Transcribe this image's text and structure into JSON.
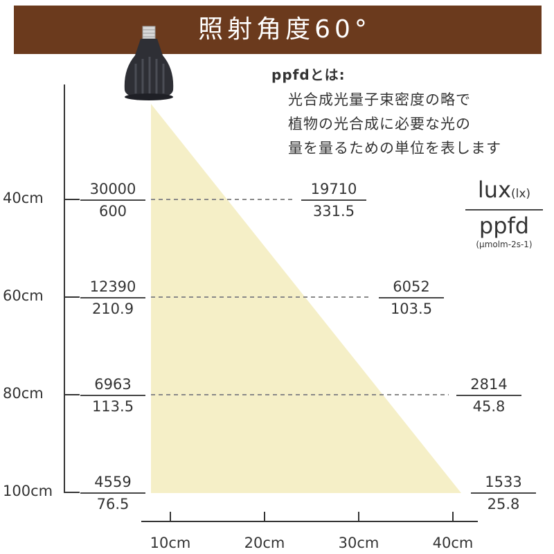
{
  "title": "照射角度60°",
  "note": {
    "heading": "ppfdとは:",
    "lines": [
      "光合成光量子束密度の略で",
      "植物の光合成に必要な光の",
      "量を量るための単位を表します"
    ]
  },
  "legend": {
    "top": "lux",
    "top_unit": "(lx)",
    "bottom": "ppfd",
    "bottom_unit": "(μmolm-2s-1)"
  },
  "distance_labels": [
    "40cm",
    "60cm",
    "80cm",
    "100cm"
  ],
  "radius_labels": [
    "10cm",
    "20cm",
    "30cm",
    "40cm"
  ],
  "center_readings": [
    {
      "lux": "30000",
      "ppfd": "600"
    },
    {
      "lux": "12390",
      "ppfd": "210.9"
    },
    {
      "lux": "6963",
      "ppfd": "113.5"
    },
    {
      "lux": "4559",
      "ppfd": "76.5"
    }
  ],
  "edge_readings": [
    {
      "lux": "19710",
      "ppfd": "331.5"
    },
    {
      "lux": "6052",
      "ppfd": "103.5"
    },
    {
      "lux": "2814",
      "ppfd": "45.8"
    },
    {
      "lux": "1533",
      "ppfd": "25.8"
    }
  ],
  "colors": {
    "banner": "#6b3a1d",
    "beam": "#f5efc7",
    "axis": "#333333",
    "dashed": "#888888"
  }
}
